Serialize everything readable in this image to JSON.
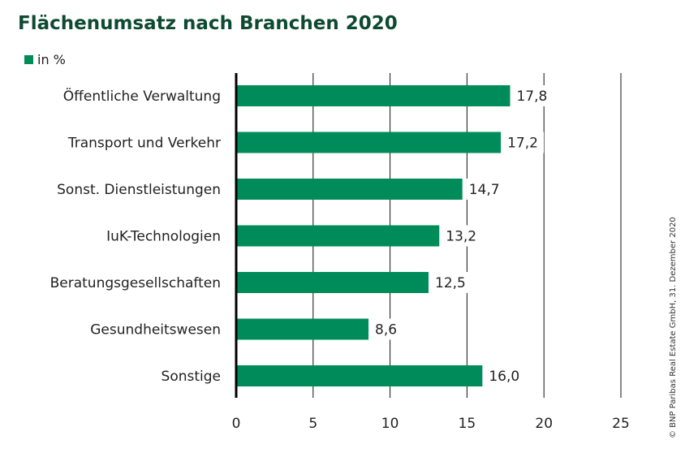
{
  "chart_data": {
    "type": "bar",
    "orientation": "horizontal",
    "title": "Flächenumsatz nach Branchen 2020",
    "legend": [
      {
        "label": "in %",
        "color": "#008c5a"
      }
    ],
    "legend_placement": "top-left",
    "categories": [
      "Öffentliche Verwaltung",
      "Transport und Verkehr",
      "Sonst. Dienstleistungen",
      "IuK-Technologien",
      "Beratungsgesellschaften",
      "Gesundheitswesen",
      "Sonstige"
    ],
    "values": [
      17.8,
      17.2,
      14.7,
      13.2,
      12.5,
      8.6,
      16.0
    ],
    "value_labels": [
      "17,8",
      "17,2",
      "14,7",
      "13,2",
      "12,5",
      "8,6",
      "16,0"
    ],
    "xlabel": "",
    "ylabel": "",
    "xlim": [
      0,
      25
    ],
    "xticks": [
      0,
      5,
      10,
      15,
      20,
      25
    ],
    "xtick_labels": [
      "0",
      "5",
      "10",
      "15",
      "20",
      "25"
    ],
    "grid": "vertical",
    "bar_color": "#008c5a",
    "source": "© BNP Paribas Real Estate GmbH, 31. Dezember 2020"
  }
}
